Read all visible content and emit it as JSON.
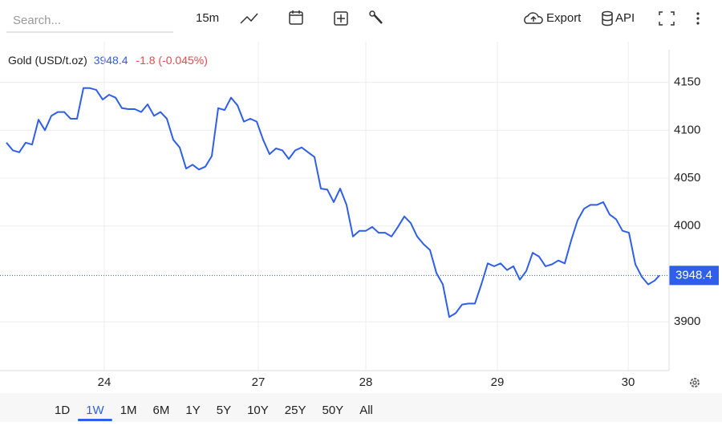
{
  "toolbar": {
    "search_placeholder": "Search...",
    "interval": "15m",
    "export": "Export",
    "api": "API"
  },
  "ranges": [
    "1D",
    "1W",
    "1M",
    "6M",
    "1Y",
    "5Y",
    "10Y",
    "25Y",
    "50Y",
    "All"
  ],
  "selected_range": 1,
  "chart_data": {
    "type": "line",
    "change_label": "-1.8 (-0.045%)",
    "x": [
      0,
      2,
      4,
      6,
      8,
      10,
      12,
      14,
      16,
      18,
      20,
      22,
      24,
      26,
      28,
      30,
      32,
      34,
      36,
      38,
      40,
      42,
      44,
      46,
      48,
      50,
      52,
      54,
      56,
      58,
      60,
      62,
      64,
      66,
      68,
      70,
      72,
      74,
      76,
      78,
      80,
      82,
      84,
      86,
      88,
      90,
      92,
      94,
      96,
      98,
      100,
      102,
      104,
      106,
      108,
      110,
      112,
      114,
      116,
      118,
      120,
      122,
      124,
      126,
      128,
      130,
      132,
      134,
      136,
      138,
      140,
      142,
      144,
      146,
      148,
      150,
      152,
      154,
      156,
      158,
      160,
      162,
      164,
      166,
      168,
      170,
      172,
      174,
      176,
      178,
      180,
      182,
      184,
      186,
      188,
      190,
      192,
      194,
      196,
      198,
      200,
      202,
      203.5
    ],
    "series": [
      {
        "name": "Gold (USD/t.oz)",
        "color": "#2f5fe8",
        "values": [
          4087,
          4079,
          4077,
          4087,
          4085,
          4111,
          4100,
          4115,
          4119,
          4119,
          4112,
          4112,
          4144,
          4144,
          4142,
          4132,
          4137,
          4134,
          4123,
          4122,
          4122,
          4119,
          4127,
          4115,
          4119,
          4112,
          4090,
          4082,
          4060,
          4064,
          4059,
          4062,
          4073,
          4123,
          4121,
          4134,
          4126,
          4109,
          4112,
          4109,
          4090,
          4075,
          4081,
          4079,
          4070,
          4079,
          4082,
          4077,
          4072,
          4039,
          4038,
          4025,
          4039,
          4022,
          3989,
          3995,
          3995,
          3999,
          3993,
          3993,
          3989,
          3999,
          4010,
          4003,
          3989,
          3981,
          3975,
          3951,
          3939,
          3905,
          3909,
          3918,
          3919,
          3919,
          3939,
          3961,
          3958,
          3961,
          3954,
          3958,
          3944,
          3953,
          3972,
          3968,
          3958,
          3960,
          3964,
          3961,
          3985,
          4006,
          4018,
          4022,
          4022,
          4025,
          4012,
          4007,
          3995,
          3993,
          3960,
          3947,
          3939,
          3943,
          3948.4
        ]
      }
    ],
    "xlim": [
      0,
      206.25
    ],
    "xticks": [
      {
        "value": 30.5,
        "label": "24"
      },
      {
        "value": 78.5,
        "label": "27"
      },
      {
        "value": 112,
        "label": "28"
      },
      {
        "value": 153,
        "label": "29"
      },
      {
        "value": 193.75,
        "label": "30"
      }
    ],
    "ylim": [
      3849,
      4184
    ],
    "yticks": [
      3900,
      4000,
      4050,
      4100,
      4150
    ],
    "grid": true
  }
}
